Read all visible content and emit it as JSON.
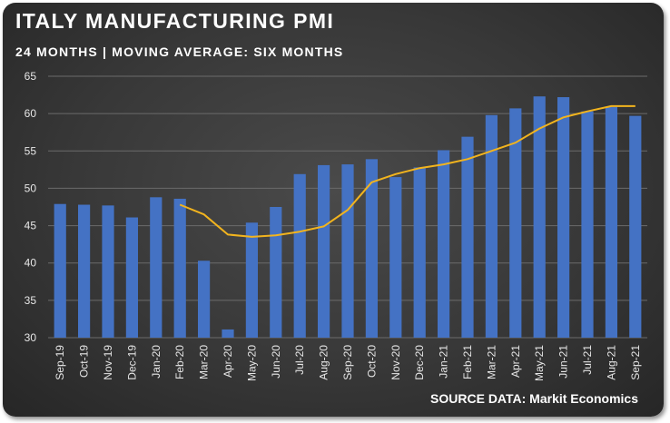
{
  "title": "ITALY MANUFACTURING PMI",
  "subtitle": "24 MONTHS | MOVING AVERAGE: SIX MONTHS",
  "source": "SOURCE DATA: Markit Economics",
  "chart_data": {
    "type": "bar",
    "categories": [
      "Sep-19",
      "Oct-19",
      "Nov-19",
      "Dec-19",
      "Jan-20",
      "Feb-20",
      "Mar-20",
      "Apr-20",
      "May-20",
      "Jun-20",
      "Jul-20",
      "Aug-20",
      "Sep-20",
      "Oct-20",
      "Nov-20",
      "Dec-20",
      "Jan-21",
      "Feb-21",
      "Mar-21",
      "Apr-21",
      "May-21",
      "Jun-21",
      "Jul-21",
      "Aug-21",
      "Sep-21"
    ],
    "series": [
      {
        "type": "bar",
        "color": "#4472c4",
        "values": [
          47.9,
          47.8,
          47.7,
          46.1,
          48.8,
          48.6,
          40.3,
          31.1,
          45.4,
          47.5,
          51.9,
          53.1,
          53.2,
          53.9,
          51.5,
          52.8,
          55.1,
          56.9,
          59.8,
          60.7,
          62.3,
          62.2,
          60.3,
          60.9,
          59.7
        ]
      },
      {
        "type": "line",
        "color": "#f2b41e",
        "values": [
          null,
          null,
          null,
          null,
          null,
          47.8,
          46.5,
          43.8,
          43.5,
          43.7,
          44.2,
          44.9,
          47.1,
          50.8,
          51.9,
          52.7,
          53.2,
          53.9,
          55.0,
          56.1,
          58.0,
          59.5,
          60.3,
          61.0,
          61.0
        ]
      }
    ],
    "ylim": [
      30,
      65
    ],
    "yticks": [
      30,
      35,
      40,
      45,
      50,
      55,
      60,
      65
    ],
    "grid": true,
    "xlabel": "",
    "ylabel": ""
  }
}
